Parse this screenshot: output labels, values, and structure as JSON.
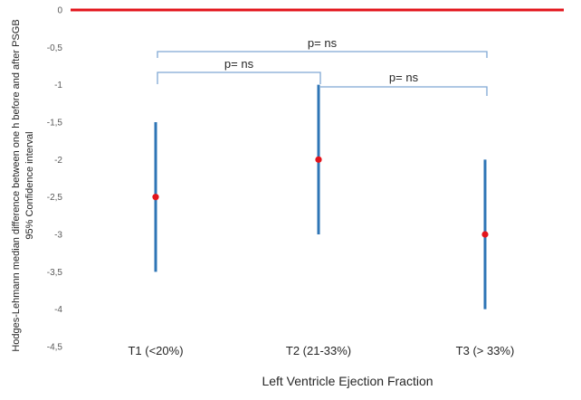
{
  "chart_data": {
    "type": "errorbar",
    "categories": [
      "T1 (<20%)",
      "T2 (21-33%)",
      "T3 (> 33%)"
    ],
    "medians": [
      -2.5,
      -2,
      -3
    ],
    "ci_low": [
      -3.5,
      -3,
      -4
    ],
    "ci_high": [
      -1.5,
      -1,
      -2
    ],
    "ylim": [
      -4.5,
      0
    ],
    "yticks": [
      0,
      -0.5,
      -1,
      -1.5,
      -2,
      -2.5,
      -3,
      -3.5,
      -4,
      -4.5
    ],
    "ytick_labels": [
      "0",
      "-0,5",
      "-1",
      "-1,5",
      "-2",
      "-2,5",
      "-3",
      "-3,5",
      "-4",
      "-4,5"
    ],
    "xlabel": "Left Ventricle Ejection Fraction",
    "ylabel_line1": "Hodges-Lehmann median difference between  one h before and after PSGB",
    "ylabel_line2": "95% Confidence interval",
    "reference_line": {
      "y": 0,
      "color": "#e3141b"
    },
    "colors": {
      "bar": "#2e75b6",
      "point": "#e3141b",
      "bracket": "#7fa8d4"
    },
    "comparisons": [
      {
        "from": 0,
        "to": 2,
        "label": "p= ns"
      },
      {
        "from": 0,
        "to": 1,
        "label": "p= ns"
      },
      {
        "from": 1,
        "to": 2,
        "label": "p= ns"
      }
    ]
  }
}
